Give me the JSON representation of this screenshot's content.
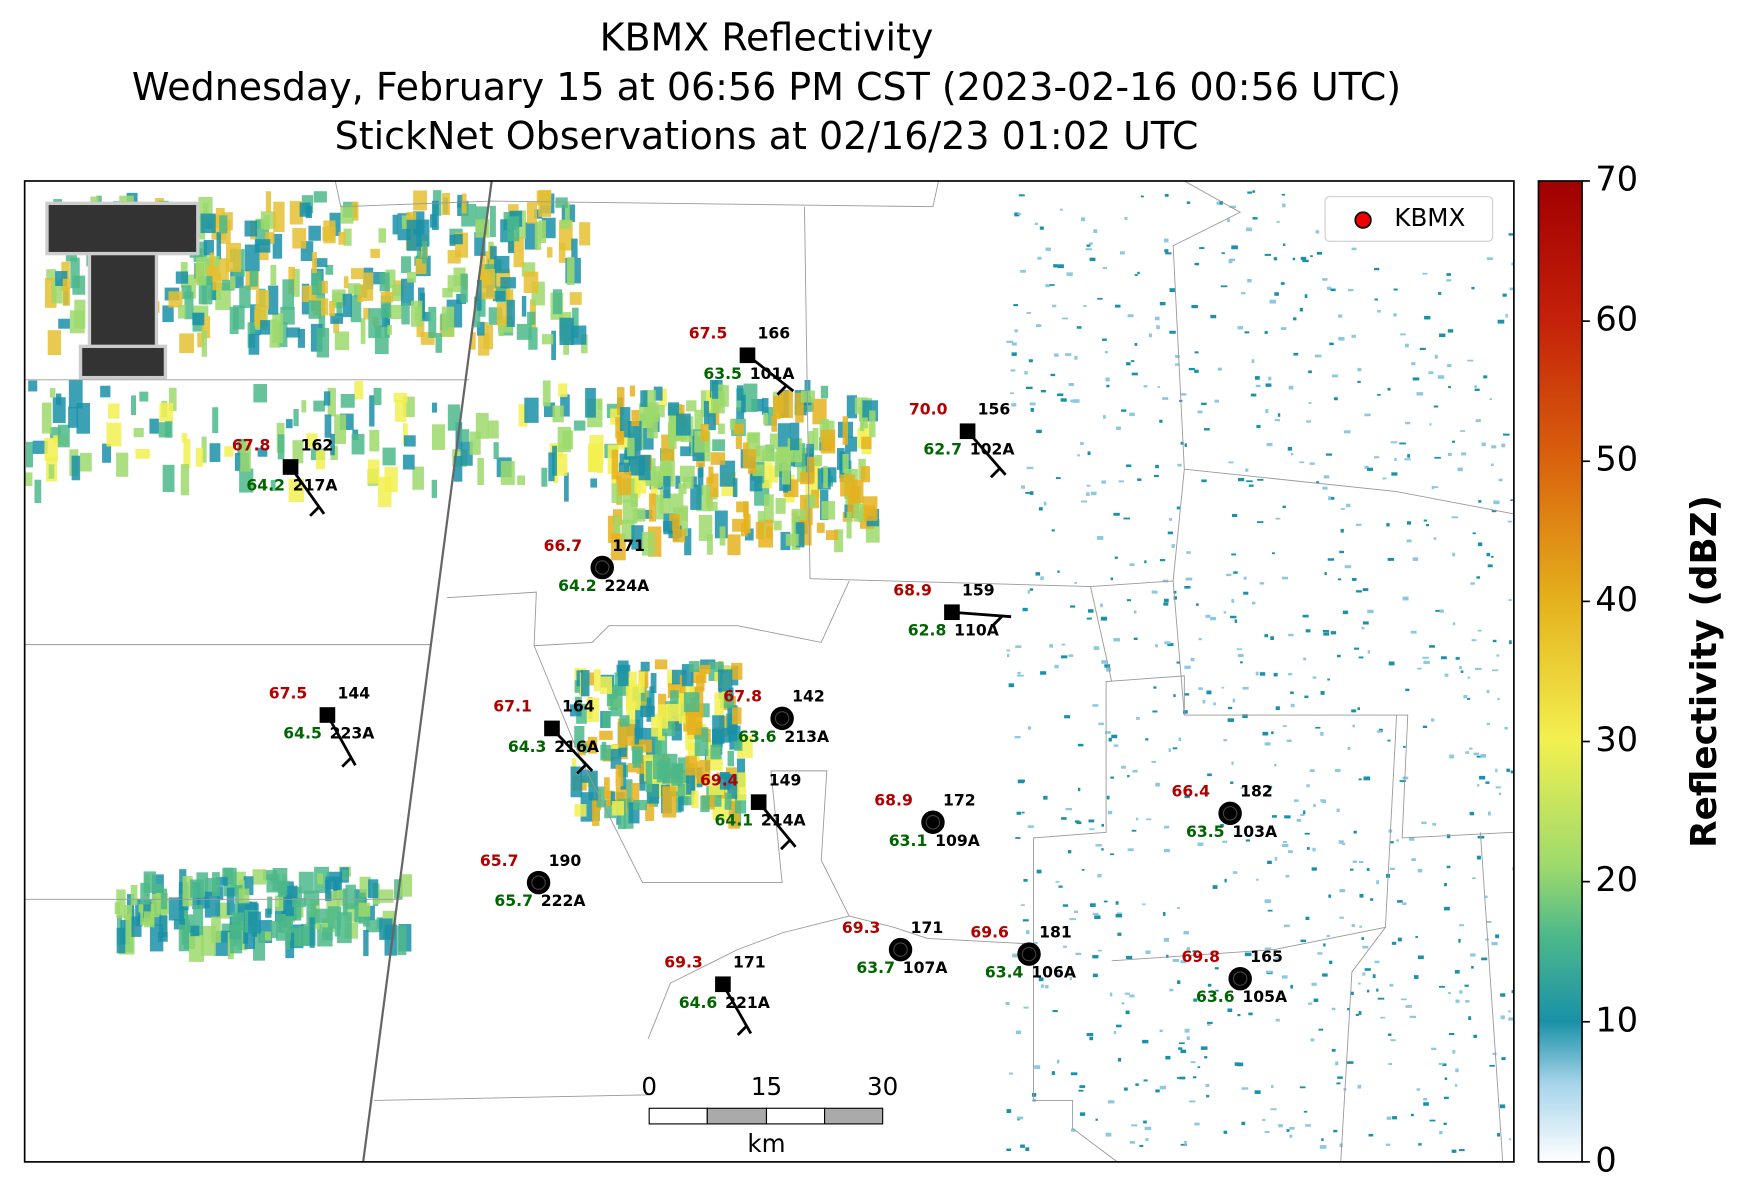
{
  "header": {
    "title_lines": [
      "KBMX Reflectivity",
      "Wednesday, February 15 at 06:56 PM CST (2023-02-16 00:56 UTC)",
      "StickNet Observations at 02/16/23 01:02 UTC"
    ]
  },
  "legend": {
    "label": "KBMX"
  },
  "colorbar": {
    "label": "Reflectivity (dBZ)",
    "lim": [
      0,
      70
    ],
    "ticks": [
      0,
      10,
      20,
      30,
      40,
      50,
      60,
      70
    ]
  },
  "scale_bar": {
    "labels": [
      "0",
      "15",
      "30"
    ],
    "unit": "km"
  },
  "stations": [
    {
      "id": "101A",
      "temperature": "67.5",
      "dewpoint": "63.5",
      "pressure": "166"
    },
    {
      "id": "102A",
      "temperature": "70.0",
      "dewpoint": "62.7",
      "pressure": "156"
    },
    {
      "id": "217A",
      "temperature": "67.8",
      "dewpoint": "64.2",
      "pressure": "162"
    },
    {
      "id": "224A",
      "temperature": "66.7",
      "dewpoint": "64.2",
      "pressure": "171"
    },
    {
      "id": "110A",
      "temperature": "68.9",
      "dewpoint": "62.8",
      "pressure": "159"
    },
    {
      "id": "223A",
      "temperature": "67.5",
      "dewpoint": "64.5",
      "pressure": "144"
    },
    {
      "id": "216A",
      "temperature": "67.1",
      "dewpoint": "64.3",
      "pressure": "164"
    },
    {
      "id": "213A",
      "temperature": "67.8",
      "dewpoint": "63.6",
      "pressure": "142"
    },
    {
      "id": "214A",
      "temperature": "69.4",
      "dewpoint": "64.1",
      "pressure": "149"
    },
    {
      "id": "109A",
      "temperature": "68.9",
      "dewpoint": "63.1",
      "pressure": "172"
    },
    {
      "id": "103A",
      "temperature": "66.4",
      "dewpoint": "63.5",
      "pressure": "182"
    },
    {
      "id": "222A",
      "temperature": "65.7",
      "dewpoint": "65.7",
      "pressure": "190"
    },
    {
      "id": "107A",
      "temperature": "69.3",
      "dewpoint": "63.7",
      "pressure": "171"
    },
    {
      "id": "106A",
      "temperature": "69.6",
      "dewpoint": "63.4",
      "pressure": "181"
    },
    {
      "id": "221A",
      "temperature": "69.3",
      "dewpoint": "64.6",
      "pressure": "171"
    },
    {
      "id": "105A",
      "temperature": "69.8",
      "dewpoint": "63.6",
      "pressure": "165"
    }
  ]
}
